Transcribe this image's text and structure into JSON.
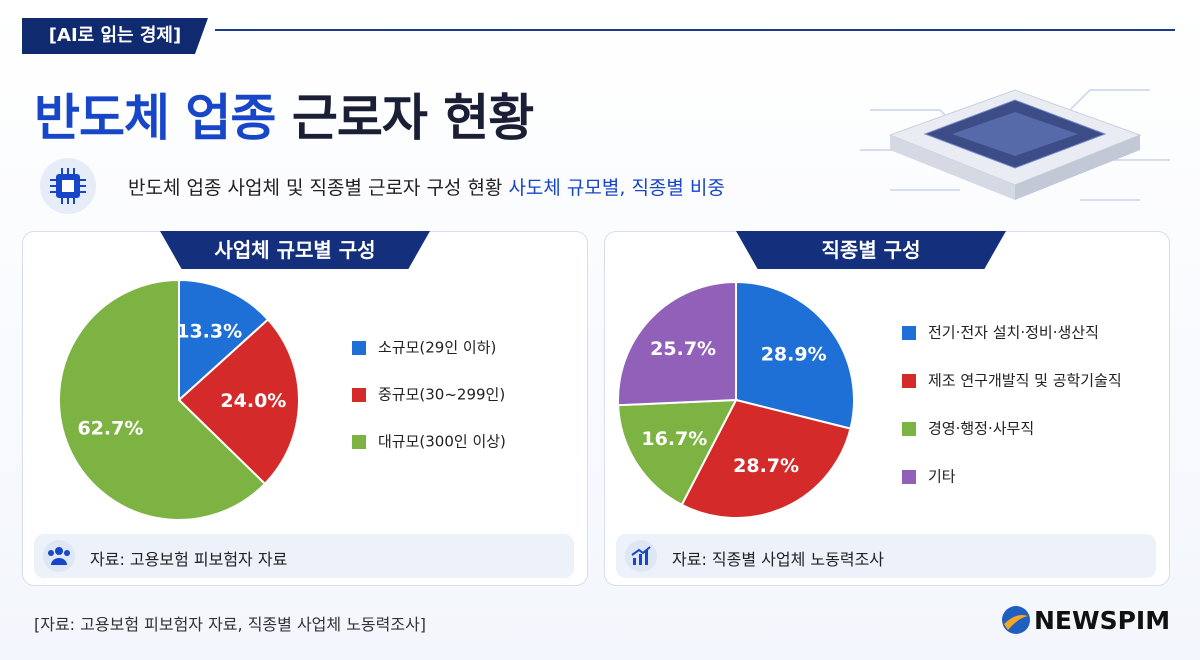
{
  "header": {
    "tag": "[AI로 읽는 경제]",
    "title_highlight": "반도체 업종",
    "title_rest": "근로자 현황",
    "subtitle": "반도체 업종 사업체 및 직종별 근로자 구성 현황",
    "subtitle_highlight": "사도체 규모별, 직종별 비중"
  },
  "chart_data": [
    {
      "type": "pie",
      "title": "사업체 규모별 구성",
      "categories": [
        "소규모(29인 이하)",
        "중규모(30~299인)",
        "대규모(300인 이상)"
      ],
      "values": [
        13.3,
        24.0,
        62.7
      ],
      "value_labels": [
        "13.3%",
        "24.0%",
        "62.7%"
      ],
      "colors": [
        "#1e6fd6",
        "#d42a2a",
        "#7cb342"
      ]
    },
    {
      "type": "pie",
      "title": "직종별 구성",
      "categories": [
        "전기·전자 설치·정비·생산직",
        "제조 연구개발직 및 공학기술직",
        "경영·행정·사무직",
        "기타"
      ],
      "values": [
        28.9,
        28.7,
        16.7,
        25.7
      ],
      "value_labels": [
        "28.9%",
        "28.7%",
        "16.7%",
        "25.7%"
      ],
      "colors": [
        "#1e6fd6",
        "#d42a2a",
        "#7cb342",
        "#9160b8"
      ]
    }
  ],
  "panels": [
    {
      "source": "자료: 고용보험 피보험자 자료"
    },
    {
      "source": "자료: 직종별 사업체 노동력조사"
    }
  ],
  "footer": {
    "source": "[자료: 고용보험 피보험자 자료, 직종별 사업체 노동력조사]",
    "logo": "NEWSPIM"
  }
}
